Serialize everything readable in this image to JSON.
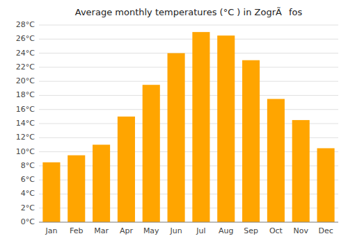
{
  "chart_data": {
    "type": "bar",
    "title": "Average monthly temperatures (°C ) in ZogrÃfos",
    "categories": [
      "Jan",
      "Feb",
      "Mar",
      "Apr",
      "May",
      "Jun",
      "Jul",
      "Aug",
      "Sep",
      "Oct",
      "Nov",
      "Dec"
    ],
    "values": [
      8.5,
      9.5,
      11.0,
      15.0,
      19.5,
      24.0,
      27.0,
      26.5,
      23.0,
      17.5,
      14.5,
      10.5
    ],
    "color": "#FFA500",
    "ylim": [
      0,
      28
    ],
    "yticks": [
      {
        "value": 0,
        "label": "0°C"
      },
      {
        "value": 2,
        "label": "2°C"
      },
      {
        "value": 4,
        "label": "4°C"
      },
      {
        "value": 6,
        "label": "6°C"
      },
      {
        "value": 8,
        "label": "8°C"
      },
      {
        "value": 10,
        "label": "10°C"
      },
      {
        "value": 12,
        "label": "12°C"
      },
      {
        "value": 14,
        "label": "14°C"
      },
      {
        "value": 16,
        "label": "16°C"
      },
      {
        "value": 18,
        "label": "18°C"
      },
      {
        "value": 20,
        "label": "20°C"
      },
      {
        "value": 22,
        "label": "22°C"
      },
      {
        "value": 24,
        "label": "24°C"
      },
      {
        "value": 26,
        "label": "26°C"
      },
      {
        "value": 28,
        "label": "28°C"
      }
    ],
    "grid": true
  }
}
